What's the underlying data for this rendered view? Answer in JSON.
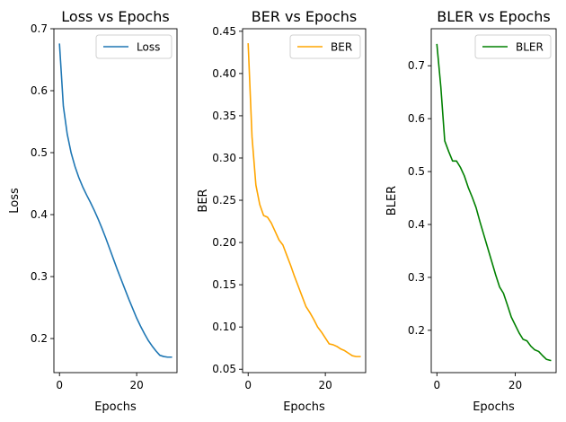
{
  "chart_data": [
    {
      "type": "line",
      "title": "Loss vs Epochs",
      "xlabel": "Epochs",
      "ylabel": "Loss",
      "xlim": [
        -1.45,
        30.45
      ],
      "ylim": [
        0.145,
        0.7
      ],
      "xticks": [
        0,
        20
      ],
      "yticks": [
        0.2,
        0.3,
        0.4,
        0.5,
        0.6,
        0.7
      ],
      "grid": false,
      "legend": "upper right",
      "series": [
        {
          "name": "Loss",
          "color": "#1f77b4",
          "x": [
            0,
            1,
            2,
            3,
            4,
            5,
            6,
            7,
            8,
            9,
            10,
            11,
            12,
            13,
            14,
            15,
            16,
            17,
            18,
            19,
            20,
            21,
            22,
            23,
            24,
            25,
            26,
            27,
            28,
            29
          ],
          "y": [
            0.675,
            0.575,
            0.53,
            0.5,
            0.478,
            0.46,
            0.445,
            0.432,
            0.42,
            0.407,
            0.393,
            0.378,
            0.362,
            0.345,
            0.328,
            0.311,
            0.295,
            0.279,
            0.263,
            0.248,
            0.233,
            0.22,
            0.208,
            0.197,
            0.188,
            0.18,
            0.173,
            0.171,
            0.17,
            0.17
          ]
        }
      ]
    },
    {
      "type": "line",
      "title": "BER vs Epochs",
      "xlabel": "Epochs",
      "ylabel": "BER",
      "xlim": [
        -1.45,
        30.45
      ],
      "ylim": [
        0.046,
        0.453
      ],
      "xticks": [
        0,
        20
      ],
      "yticks": [
        0.05,
        0.1,
        0.15,
        0.2,
        0.25,
        0.3,
        0.35,
        0.4,
        0.45
      ],
      "grid": false,
      "legend": "upper right",
      "series": [
        {
          "name": "BER",
          "color": "#ffa500",
          "x": [
            0,
            1,
            2,
            3,
            4,
            5,
            6,
            7,
            8,
            9,
            10,
            11,
            12,
            13,
            14,
            15,
            16,
            17,
            18,
            19,
            20,
            21,
            22,
            23,
            24,
            25,
            26,
            27,
            28,
            29
          ],
          "y": [
            0.435,
            0.325,
            0.268,
            0.245,
            0.232,
            0.23,
            0.223,
            0.213,
            0.203,
            0.197,
            0.185,
            0.173,
            0.16,
            0.148,
            0.136,
            0.124,
            0.117,
            0.109,
            0.1,
            0.094,
            0.087,
            0.08,
            0.079,
            0.077,
            0.074,
            0.072,
            0.069,
            0.066,
            0.065,
            0.065
          ]
        }
      ]
    },
    {
      "type": "line",
      "title": "BLER vs Epochs",
      "xlabel": "Epochs",
      "ylabel": "BLER",
      "xlim": [
        -1.45,
        30.45
      ],
      "ylim": [
        0.12,
        0.77
      ],
      "xticks": [
        0,
        20
      ],
      "yticks": [
        0.2,
        0.3,
        0.4,
        0.5,
        0.6,
        0.7
      ],
      "grid": false,
      "legend": "upper right",
      "series": [
        {
          "name": "BLER",
          "color": "#008000",
          "x": [
            0,
            1,
            2,
            3,
            4,
            5,
            6,
            7,
            8,
            9,
            10,
            11,
            12,
            13,
            14,
            15,
            16,
            17,
            18,
            19,
            20,
            21,
            22,
            23,
            24,
            25,
            26,
            27,
            28,
            29
          ],
          "y": [
            0.74,
            0.66,
            0.558,
            0.538,
            0.52,
            0.52,
            0.508,
            0.492,
            0.47,
            0.452,
            0.432,
            0.405,
            0.38,
            0.355,
            0.33,
            0.305,
            0.282,
            0.27,
            0.248,
            0.225,
            0.21,
            0.195,
            0.183,
            0.18,
            0.17,
            0.163,
            0.16,
            0.152,
            0.145,
            0.143
          ]
        }
      ]
    }
  ]
}
